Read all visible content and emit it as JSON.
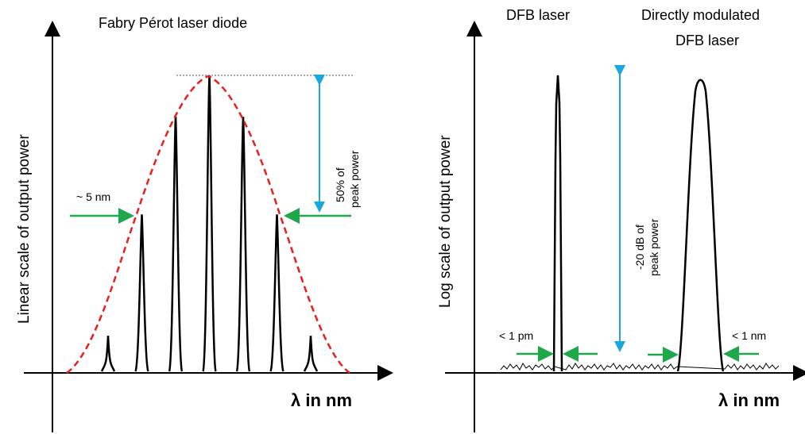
{
  "left_panel": {
    "title": "Fabry Pérot  laser diode",
    "y_axis_label": "Linear scale of output power",
    "x_axis_label": "λ in nm",
    "width_annotation": "~ 5 nm",
    "peak_annotation": [
      "50% of",
      "peak power"
    ],
    "mode_relative_heights": [
      0.12,
      0.53,
      0.86,
      1.0,
      0.86,
      0.53,
      0.12
    ]
  },
  "right_panel": {
    "label_dfb": "DFB laser",
    "label_direct": [
      "Directly modulated",
      "DFB laser"
    ],
    "y_axis_label": "Log scale of output power",
    "x_axis_label": "λ in nm",
    "left_width_annotation": "< 1 pm",
    "right_width_annotation": "< 1 nm",
    "peak_annotation": [
      "-20 dB of",
      "peak power"
    ]
  },
  "colors": {
    "envelope": "#e8201c",
    "arrow_blue": "#1aa7e0",
    "arrow_green": "#1fa84a",
    "ink": "#000000"
  }
}
